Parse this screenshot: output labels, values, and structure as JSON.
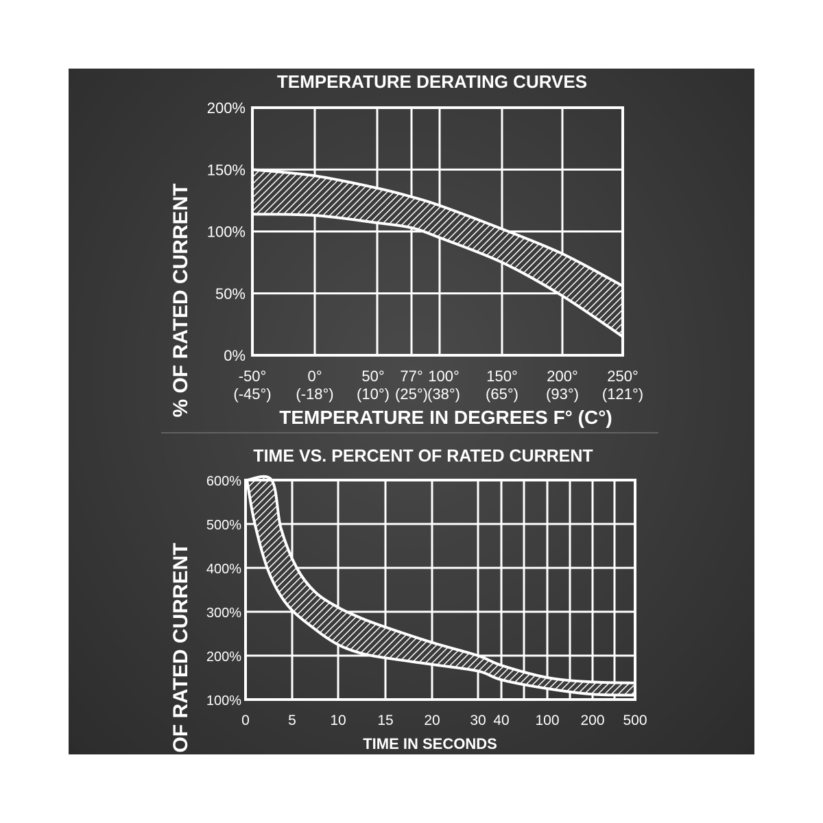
{
  "colors": {
    "background": "#3a3a3a",
    "foreground": "#ffffff"
  },
  "chart_data": [
    {
      "type": "area",
      "title": "TEMPERATURE DERATING CURVES",
      "xlabel": "TEMPERATURE IN DEGREES F° (C°)",
      "ylabel": "% OF RATED CURRENT",
      "x_ticks": [
        {
          "x": -50,
          "f": "-50°",
          "c": "(-45°)"
        },
        {
          "x": 0,
          "f": "0°",
          "c": "(-18°)"
        },
        {
          "x": 50,
          "f": "50°",
          "c": "(10°)"
        },
        {
          "x": 77,
          "f": "77°",
          "c": "(25°)"
        },
        {
          "x": 100,
          "f": "100°",
          "c": "(38°)"
        },
        {
          "x": 150,
          "f": "150°",
          "c": "(65°)"
        },
        {
          "x": 200,
          "f": "200°",
          "c": "(93°)"
        },
        {
          "x": 250,
          "f": "250°",
          "c": "(121°)"
        }
      ],
      "y_ticks": [
        {
          "y": 0,
          "label": "0%"
        },
        {
          "y": 50,
          "label": "50%"
        },
        {
          "y": 100,
          "label": "100%"
        },
        {
          "y": 150,
          "label": "150%"
        },
        {
          "y": 200,
          "label": "200%"
        }
      ],
      "xlim": [
        -50,
        250
      ],
      "ylim": [
        0,
        200
      ],
      "grid": true,
      "band": {
        "upper": [
          [
            -50,
            150
          ],
          [
            0,
            145
          ],
          [
            50,
            135
          ],
          [
            77,
            128
          ],
          [
            100,
            121
          ],
          [
            150,
            102
          ],
          [
            200,
            82
          ],
          [
            250,
            56
          ]
        ],
        "lower": [
          [
            -50,
            114
          ],
          [
            0,
            113
          ],
          [
            50,
            107
          ],
          [
            77,
            103
          ],
          [
            100,
            95
          ],
          [
            150,
            75
          ],
          [
            200,
            48
          ],
          [
            250,
            15
          ]
        ]
      }
    },
    {
      "type": "area",
      "title": "TIME VS. PERCENT OF RATED CURRENT",
      "xlabel": "TIME IN SECONDS",
      "ylabel": "% OF RATED CURRENT",
      "x_ticks": [
        "0",
        "5",
        "10",
        "15",
        "20",
        "30",
        "40",
        "100",
        "200",
        "500"
      ],
      "y_ticks": [
        "100%",
        "200%",
        "300%",
        "400%",
        "500%",
        "600%"
      ],
      "ylim": [
        100,
        600
      ],
      "grid": true,
      "band": {
        "upper": [
          [
            0.15,
            600
          ],
          [
            2.8,
            600
          ],
          [
            3.8,
            490
          ],
          [
            5.5,
            400
          ],
          [
            7.5,
            345
          ],
          [
            10,
            310
          ],
          [
            12.5,
            285
          ],
          [
            15,
            265
          ],
          [
            20,
            230
          ],
          [
            30,
            200
          ],
          [
            40,
            178
          ],
          [
            100,
            150
          ],
          [
            200,
            140
          ],
          [
            500,
            138
          ]
        ],
        "lower": [
          [
            0.15,
            600
          ],
          [
            1.0,
            500
          ],
          [
            2.5,
            390
          ],
          [
            4.5,
            315
          ],
          [
            7.5,
            260
          ],
          [
            10,
            225
          ],
          [
            12.5,
            205
          ],
          [
            15,
            195
          ],
          [
            20,
            180
          ],
          [
            30,
            165
          ],
          [
            40,
            145
          ],
          [
            100,
            125
          ],
          [
            200,
            112
          ],
          [
            500,
            110
          ]
        ]
      }
    }
  ]
}
